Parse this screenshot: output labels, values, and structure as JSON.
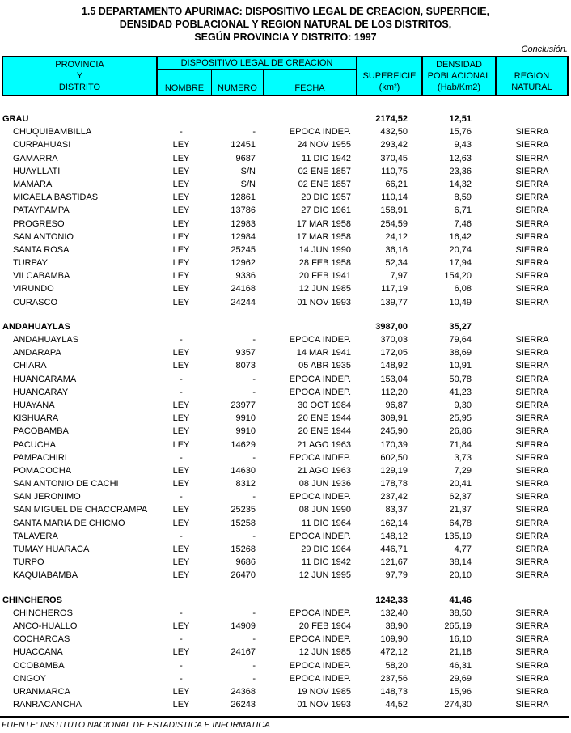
{
  "title": {
    "line1": "1.5 DEPARTAMENTO APURIMAC: DISPOSITIVO LEGAL DE CREACION, SUPERFICIE,",
    "line2": "DENSIDAD POBLACIONAL Y REGION NATURAL DE LOS DISTRITOS,",
    "line3": "SEGÚN PROVINCIA Y DISTRITO: 1997"
  },
  "conclusion_note": "Conclusión.",
  "colors": {
    "header_bg": "#00ffff",
    "text": "#000000"
  },
  "table": {
    "header": {
      "col_provincia": [
        "PROVINCIA",
        "Y",
        "DISTRITO"
      ],
      "group_dispositivo": "DISPOSITIVO LEGAL DE CREACION",
      "col_nombre": "NOMBRE",
      "col_numero": "NUMERO",
      "col_fecha": "FECHA",
      "col_superficie": [
        "SUPERFICIE",
        "(km²)"
      ],
      "col_densidad": [
        "DENSIDAD",
        "POBLACIONAL",
        "(Hab/Km2)"
      ],
      "col_region": [
        "REGION",
        "NATURAL"
      ]
    },
    "sections": [
      {
        "province": "GRAU",
        "superficie": "2174,52",
        "densidad": "12,51",
        "rows": [
          {
            "district": "CHUQUIBAMBILLA",
            "nombre": "-",
            "numero": "-",
            "fecha": "EPOCA INDEP.",
            "superficie": "432,50",
            "densidad": "15,76",
            "region": "SIERRA"
          },
          {
            "district": "CURPAHUASI",
            "nombre": "LEY",
            "numero": "12451",
            "fecha": "24 NOV 1955",
            "superficie": "293,42",
            "densidad": "9,43",
            "region": "SIERRA"
          },
          {
            "district": "GAMARRA",
            "nombre": "LEY",
            "numero": "9687",
            "fecha": "11 DIC 1942",
            "superficie": "370,45",
            "densidad": "12,63",
            "region": "SIERRA"
          },
          {
            "district": "HUAYLLATI",
            "nombre": "LEY",
            "numero": "S/N",
            "fecha": "02 ENE 1857",
            "superficie": "110,75",
            "densidad": "23,36",
            "region": "SIERRA"
          },
          {
            "district": "MAMARA",
            "nombre": "LEY",
            "numero": "S/N",
            "fecha": "02 ENE 1857",
            "superficie": "66,21",
            "densidad": "14,32",
            "region": "SIERRA"
          },
          {
            "district": "MICAELA BASTIDAS",
            "nombre": "LEY",
            "numero": "12861",
            "fecha": "20 DIC 1957",
            "superficie": "110,14",
            "densidad": "8,59",
            "region": "SIERRA"
          },
          {
            "district": "PATAYPAMPA",
            "nombre": "LEY",
            "numero": "13786",
            "fecha": "27 DIC 1961",
            "superficie": "158,91",
            "densidad": "6,71",
            "region": "SIERRA"
          },
          {
            "district": "PROGRESO",
            "nombre": "LEY",
            "numero": "12983",
            "fecha": "17 MAR 1958",
            "superficie": "254,59",
            "densidad": "7,46",
            "region": "SIERRA"
          },
          {
            "district": "SAN ANTONIO",
            "nombre": "LEY",
            "numero": "12984",
            "fecha": "17 MAR 1958",
            "superficie": "24,12",
            "densidad": "16,42",
            "region": "SIERRA"
          },
          {
            "district": "SANTA ROSA",
            "nombre": "LEY",
            "numero": "25245",
            "fecha": "14 JUN 1990",
            "superficie": "36,16",
            "densidad": "20,74",
            "region": "SIERRA"
          },
          {
            "district": "TURPAY",
            "nombre": "LEY",
            "numero": "12962",
            "fecha": "28 FEB 1958",
            "superficie": "52,34",
            "densidad": "17,94",
            "region": "SIERRA"
          },
          {
            "district": "VILCABAMBA",
            "nombre": "LEY",
            "numero": "9336",
            "fecha": "20 FEB 1941",
            "superficie": "7,97",
            "densidad": "154,20",
            "region": "SIERRA"
          },
          {
            "district": "VIRUNDO",
            "nombre": "LEY",
            "numero": "24168",
            "fecha": "12 JUN 1985",
            "superficie": "117,19",
            "densidad": "6,08",
            "region": "SIERRA"
          },
          {
            "district": "CURASCO",
            "nombre": "LEY",
            "numero": "24244",
            "fecha": "01 NOV 1993",
            "superficie": "139,77",
            "densidad": "10,49",
            "region": "SIERRA"
          }
        ]
      },
      {
        "province": "ANDAHUAYLAS",
        "superficie": "3987,00",
        "densidad": "35,27",
        "rows": [
          {
            "district": "ANDAHUAYLAS",
            "nombre": "-",
            "numero": "-",
            "fecha": "EPOCA INDEP.",
            "superficie": "370,03",
            "densidad": "79,64",
            "region": "SIERRA"
          },
          {
            "district": "ANDARAPA",
            "nombre": "LEY",
            "numero": "9357",
            "fecha": "14 MAR 1941",
            "superficie": "172,05",
            "densidad": "38,69",
            "region": "SIERRA"
          },
          {
            "district": "CHIARA",
            "nombre": "LEY",
            "numero": "8073",
            "fecha": "05 ABR 1935",
            "superficie": "148,92",
            "densidad": "10,91",
            "region": "SIERRA"
          },
          {
            "district": "HUANCARAMA",
            "nombre": "-",
            "numero": "-",
            "fecha": "EPOCA INDEP.",
            "superficie": "153,04",
            "densidad": "50,78",
            "region": "SIERRA"
          },
          {
            "district": "HUANCARAY",
            "nombre": "-",
            "numero": "-",
            "fecha": "EPOCA INDEP.",
            "superficie": "112,20",
            "densidad": "41,23",
            "region": "SIERRA"
          },
          {
            "district": "HUAYANA",
            "nombre": "LEY",
            "numero": "23977",
            "fecha": "30 OCT 1984",
            "superficie": "96,87",
            "densidad": "9,30",
            "region": "SIERRA"
          },
          {
            "district": "KISHUARA",
            "nombre": "LEY",
            "numero": "9910",
            "fecha": "20 ENE 1944",
            "superficie": "309,91",
            "densidad": "25,95",
            "region": "SIERRA"
          },
          {
            "district": "PACOBAMBA",
            "nombre": "LEY",
            "numero": "9910",
            "fecha": "20 ENE 1944",
            "superficie": "245,90",
            "densidad": "26,86",
            "region": "SIERRA"
          },
          {
            "district": "PACUCHA",
            "nombre": "LEY",
            "numero": "14629",
            "fecha": "21 AGO 1963",
            "superficie": "170,39",
            "densidad": "71,84",
            "region": "SIERRA"
          },
          {
            "district": "PAMPACHIRI",
            "nombre": "-",
            "numero": "-",
            "fecha": "EPOCA INDEP.",
            "superficie": "602,50",
            "densidad": "3,73",
            "region": "SIERRA"
          },
          {
            "district": "POMACOCHA",
            "nombre": "LEY",
            "numero": "14630",
            "fecha": "21 AGO 1963",
            "superficie": "129,19",
            "densidad": "7,29",
            "region": "SIERRA"
          },
          {
            "district": "SAN ANTONIO DE CACHI",
            "nombre": "LEY",
            "numero": "8312",
            "fecha": "08 JUN 1936",
            "superficie": "178,78",
            "densidad": "20,41",
            "region": "SIERRA"
          },
          {
            "district": "SAN JERONIMO",
            "nombre": "-",
            "numero": "-",
            "fecha": "EPOCA INDEP.",
            "superficie": "237,42",
            "densidad": "62,37",
            "region": "SIERRA"
          },
          {
            "district": "SAN MIGUEL DE CHACCRAMPA",
            "nombre": "LEY",
            "numero": "25235",
            "fecha": "08 JUN 1990",
            "superficie": "83,37",
            "densidad": "21,37",
            "region": "SIERRA"
          },
          {
            "district": "SANTA MARIA DE CHICMO",
            "nombre": "LEY",
            "numero": "15258",
            "fecha": "11 DIC 1964",
            "superficie": "162,14",
            "densidad": "64,78",
            "region": "SIERRA"
          },
          {
            "district": "TALAVERA",
            "nombre": "-",
            "numero": "-",
            "fecha": "EPOCA INDEP.",
            "superficie": "148,12",
            "densidad": "135,19",
            "region": "SIERRA"
          },
          {
            "district": "TUMAY HUARACA",
            "nombre": "LEY",
            "numero": "15268",
            "fecha": "29 DIC 1964",
            "superficie": "446,71",
            "densidad": "4,77",
            "region": "SIERRA"
          },
          {
            "district": "TURPO",
            "nombre": "LEY",
            "numero": "9686",
            "fecha": "11 DIC 1942",
            "superficie": "121,67",
            "densidad": "38,14",
            "region": "SIERRA"
          },
          {
            "district": "KAQUIABAMBA",
            "nombre": "LEY",
            "numero": "26470",
            "fecha": "12 JUN 1995",
            "superficie": "97,79",
            "densidad": "20,10",
            "region": "SIERRA"
          }
        ]
      },
      {
        "province": "CHINCHEROS",
        "superficie": "1242,33",
        "densidad": "41,46",
        "rows": [
          {
            "district": "CHINCHEROS",
            "nombre": "-",
            "numero": "-",
            "fecha": "EPOCA INDEP.",
            "superficie": "132,40",
            "densidad": "38,50",
            "region": "SIERRA"
          },
          {
            "district": "ANCO-HUALLO",
            "nombre": "LEY",
            "numero": "14909",
            "fecha": "20 FEB 1964",
            "superficie": "38,90",
            "densidad": "265,19",
            "region": "SIERRA"
          },
          {
            "district": "COCHARCAS",
            "nombre": "-",
            "numero": "-",
            "fecha": "EPOCA INDEP.",
            "superficie": "109,90",
            "densidad": "16,10",
            "region": "SIERRA"
          },
          {
            "district": "HUACCANA",
            "nombre": "LEY",
            "numero": "24167",
            "fecha": "12 JUN 1985",
            "superficie": "472,12",
            "densidad": "21,18",
            "region": "SIERRA"
          },
          {
            "district": "OCOBAMBA",
            "nombre": "-",
            "numero": "-",
            "fecha": "EPOCA INDEP.",
            "superficie": "58,20",
            "densidad": "46,31",
            "region": "SIERRA"
          },
          {
            "district": "ONGOY",
            "nombre": "-",
            "numero": "-",
            "fecha": "EPOCA INDEP.",
            "superficie": "237,56",
            "densidad": "29,69",
            "region": "SIERRA"
          },
          {
            "district": "URANMARCA",
            "nombre": "LEY",
            "numero": "24368",
            "fecha": "19 NOV 1985",
            "superficie": "148,73",
            "densidad": "15,96",
            "region": "SIERRA"
          },
          {
            "district": "RANRACANCHA",
            "nombre": "LEY",
            "numero": "26243",
            "fecha": "01 NOV 1993",
            "superficie": "44,52",
            "densidad": "274,30",
            "region": "SIERRA"
          }
        ]
      }
    ]
  },
  "footer": {
    "source": "FUENTE: INSTITUTO NACIONAL DE ESTADISTICA E INFORMATICA"
  }
}
